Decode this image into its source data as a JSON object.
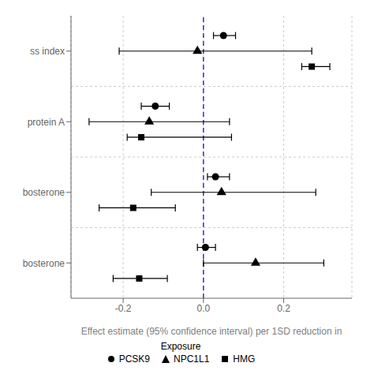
{
  "chart_data": {
    "type": "scatter",
    "xlabel": "Effect estimate (95% confidence interval) per 1SD reduction in",
    "categories": [
      "ss index",
      "protein A",
      "bosterone",
      "bosterone"
    ],
    "series": [
      {
        "name": "PCSK9",
        "color": "#000000",
        "marker": "circle",
        "values": [
          0.05,
          -0.12,
          0.03,
          0.005
        ],
        "ci_lo": [
          0.025,
          -0.155,
          0.01,
          -0.015
        ],
        "ci_hi": [
          0.08,
          -0.085,
          0.065,
          0.03
        ]
      },
      {
        "name": "NPC1L1",
        "color": "#000000",
        "marker": "triangle",
        "values": [
          -0.015,
          -0.135,
          0.045,
          0.13
        ],
        "ci_lo": [
          -0.21,
          -0.285,
          -0.13,
          0.0
        ],
        "ci_hi": [
          0.27,
          0.065,
          0.28,
          0.3
        ]
      },
      {
        "name": "HMG",
        "color": "#000000",
        "marker": "square",
        "values": [
          0.27,
          -0.155,
          -0.175,
          -0.16
        ],
        "ci_lo": [
          0.245,
          -0.19,
          -0.26,
          -0.225
        ],
        "ci_hi": [
          0.315,
          0.07,
          -0.07,
          -0.09
        ]
      }
    ],
    "xlim": [
      -0.33,
      0.37
    ],
    "xticks": [
      -0.2,
      {
        "value": 0.0,
        "label": "0.0"
      },
      0.2
    ],
    "grid": true,
    "legend": "bottom",
    "legend_title": "Exposure",
    "reference_line": {
      "x": 0.0,
      "color": "#3333bb",
      "line_style": "dashed"
    }
  }
}
